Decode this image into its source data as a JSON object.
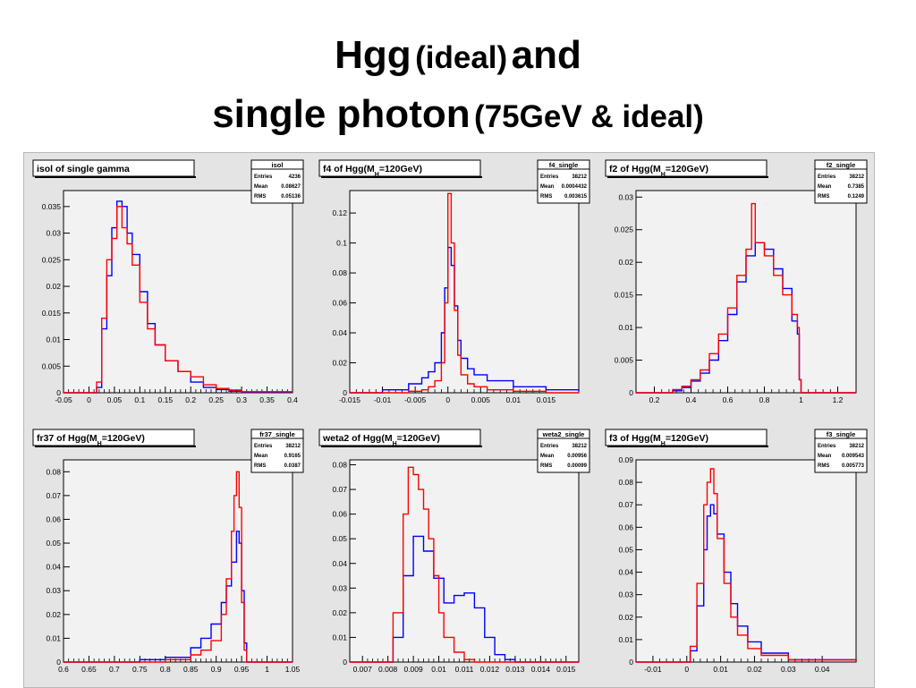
{
  "slide": {
    "title_line1_a": "Hgg",
    "title_line1_b": "(ideal)",
    "title_line1_c": "and",
    "title_line2_a": "single photon",
    "title_line2_b": "(75GeV & ideal)"
  },
  "colors": {
    "hgg": "#0000ff",
    "single": "#ff0000",
    "frame": "#000000",
    "pad": "#f2f2f2"
  },
  "chart_data": [
    {
      "type": "line",
      "title": "isol of single gamma",
      "stats": {
        "name": "isol",
        "rows": [
          [
            "Entries",
            "4236"
          ],
          [
            "Mean",
            "0.08627"
          ],
          [
            "RMS",
            "0.05136"
          ]
        ]
      },
      "xlim": [
        -0.05,
        0.4
      ],
      "ylim": [
        0,
        0.038
      ],
      "xticks": [
        "-0.05",
        "0",
        "0.05",
        "0.1",
        "0.15",
        "0.2",
        "0.25",
        "0.3",
        "0.35",
        "0.4"
      ],
      "xtick_values": [
        -0.05,
        0,
        0.05,
        0.1,
        0.15,
        0.2,
        0.25,
        0.3,
        0.35,
        0.4
      ],
      "yticks": [
        "0.005",
        "0.01",
        "0.015",
        "0.02",
        "0.025",
        "0.03",
        "0.035"
      ],
      "ytick_values": [
        0.005,
        0.01,
        0.015,
        0.02,
        0.025,
        0.03,
        0.035
      ],
      "series": [
        {
          "color": "blue",
          "x": [
            -0.05,
            0.005,
            0.015,
            0.025,
            0.035,
            0.045,
            0.055,
            0.065,
            0.075,
            0.085,
            0.1,
            0.115,
            0.13,
            0.15,
            0.175,
            0.2,
            0.225,
            0.25,
            0.275,
            0.3,
            0.4
          ],
          "y": [
            0,
            0,
            0.001,
            0.012,
            0.022,
            0.031,
            0.036,
            0.035,
            0.03,
            0.026,
            0.019,
            0.013,
            0.009,
            0.006,
            0.004,
            0.002,
            0.001,
            0.0006,
            0.0003,
            0.0001,
            0
          ]
        },
        {
          "color": "red",
          "x": [
            -0.05,
            0.005,
            0.015,
            0.025,
            0.035,
            0.045,
            0.055,
            0.065,
            0.075,
            0.085,
            0.1,
            0.115,
            0.13,
            0.15,
            0.175,
            0.2,
            0.225,
            0.25,
            0.275,
            0.3,
            0.4
          ],
          "y": [
            0,
            0,
            0.002,
            0.014,
            0.025,
            0.029,
            0.035,
            0.031,
            0.028,
            0.024,
            0.017,
            0.012,
            0.009,
            0.006,
            0.004,
            0.003,
            0.0015,
            0.0008,
            0.0005,
            0.0002,
            0
          ]
        }
      ]
    },
    {
      "type": "line",
      "title": "f4 of Hgg(M",
      "title_sub": "H",
      "title_end": "=120GeV)",
      "stats": {
        "name": "f4_single",
        "rows": [
          [
            "Entries",
            "38212"
          ],
          [
            "Mean",
            "0.0004432"
          ],
          [
            "RMS",
            "0.003615"
          ]
        ]
      },
      "xlim": [
        -0.015,
        0.02
      ],
      "ylim": [
        0,
        0.135
      ],
      "xticks": [
        "-0.015",
        "-0.01",
        "-0.005",
        "0",
        "0.005",
        "0.01",
        "0.015"
      ],
      "xtick_values": [
        -0.015,
        -0.01,
        -0.005,
        0,
        0.005,
        0.01,
        0.015
      ],
      "yticks": [
        "0.02",
        "0.04",
        "0.06",
        "0.08",
        "0.1",
        "0.12"
      ],
      "ytick_values": [
        0.02,
        0.04,
        0.06,
        0.08,
        0.1,
        0.12
      ],
      "series": [
        {
          "color": "blue",
          "x": [
            -0.015,
            -0.01,
            -0.006,
            -0.004,
            -0.003,
            -0.002,
            -0.001,
            -0.0005,
            0,
            0.0005,
            0.001,
            0.0015,
            0.002,
            0.003,
            0.004,
            0.006,
            0.01,
            0.015,
            0.02
          ],
          "y": [
            0,
            0.002,
            0.006,
            0.01,
            0.014,
            0.02,
            0.04,
            0.07,
            0.097,
            0.085,
            0.058,
            0.035,
            0.023,
            0.016,
            0.012,
            0.008,
            0.004,
            0.002,
            0.001
          ]
        },
        {
          "color": "red",
          "x": [
            -0.015,
            -0.01,
            -0.006,
            -0.004,
            -0.003,
            -0.002,
            -0.001,
            -0.0005,
            0,
            0.0005,
            0.001,
            0.0015,
            0.002,
            0.003,
            0.004,
            0.006,
            0.01,
            0.015,
            0.02
          ],
          "y": [
            0,
            0,
            0.001,
            0.002,
            0.004,
            0.008,
            0.02,
            0.06,
            0.133,
            0.1,
            0.055,
            0.025,
            0.012,
            0.006,
            0.004,
            0.002,
            0.001,
            0,
            0
          ]
        }
      ]
    },
    {
      "type": "line",
      "title": "f2 of Hgg(M",
      "title_sub": "H",
      "title_end": "=120GeV)",
      "stats": {
        "name": "f2_single",
        "rows": [
          [
            "Entries",
            "38212"
          ],
          [
            "Mean",
            "0.7385"
          ],
          [
            "RMS",
            "0.1249"
          ]
        ]
      },
      "xlim": [
        0.1,
        1.3
      ],
      "ylim": [
        0,
        0.031
      ],
      "xticks": [
        "0.2",
        "0.4",
        "0.6",
        "0.8",
        "1",
        "1.2"
      ],
      "xtick_values": [
        0.2,
        0.4,
        0.6,
        0.8,
        1,
        1.2
      ],
      "yticks": [
        "0.005",
        "0.01",
        "0.015",
        "0.02",
        "0.025",
        "0.03"
      ],
      "ytick_values": [
        0.005,
        0.01,
        0.015,
        0.02,
        0.025,
        0.03
      ],
      "series": [
        {
          "color": "blue",
          "x": [
            0.1,
            0.25,
            0.3,
            0.35,
            0.4,
            0.45,
            0.5,
            0.55,
            0.6,
            0.65,
            0.7,
            0.75,
            0.8,
            0.85,
            0.9,
            0.95,
            0.98,
            0.99,
            1.0,
            1.3
          ],
          "y": [
            0,
            0,
            0.0003,
            0.0008,
            0.0018,
            0.003,
            0.005,
            0.008,
            0.012,
            0.017,
            0.021,
            0.023,
            0.022,
            0.019,
            0.016,
            0.011,
            0.009,
            0.002,
            0,
            0
          ]
        },
        {
          "color": "red",
          "x": [
            0.1,
            0.25,
            0.3,
            0.35,
            0.4,
            0.45,
            0.5,
            0.55,
            0.6,
            0.65,
            0.7,
            0.73,
            0.75,
            0.8,
            0.85,
            0.9,
            0.95,
            0.98,
            0.99,
            1.0,
            1.3
          ],
          "y": [
            0,
            0,
            0.0005,
            0.001,
            0.002,
            0.0035,
            0.006,
            0.009,
            0.013,
            0.018,
            0.022,
            0.029,
            0.023,
            0.021,
            0.018,
            0.015,
            0.012,
            0.01,
            0.002,
            0,
            0
          ]
        }
      ]
    },
    {
      "type": "line",
      "title": "fr37 of Hgg(M",
      "title_sub": "H",
      "title_end": "=120GeV)",
      "stats": {
        "name": "fr37_single",
        "rows": [
          [
            "Entries",
            "38212"
          ],
          [
            "Mean",
            "0.9165"
          ],
          [
            "RMS",
            "0.0387"
          ]
        ]
      },
      "xlim": [
        0.6,
        1.05
      ],
      "ylim": [
        0,
        0.085
      ],
      "xticks": [
        "0.6",
        "0.65",
        "0.7",
        "0.75",
        "0.8",
        "0.85",
        "0.9",
        "0.95",
        "1",
        "1.05"
      ],
      "xtick_values": [
        0.6,
        0.65,
        0.7,
        0.75,
        0.8,
        0.85,
        0.9,
        0.95,
        1,
        1.05
      ],
      "yticks": [
        "0.01",
        "0.02",
        "0.03",
        "0.04",
        "0.05",
        "0.06",
        "0.07",
        "0.08"
      ],
      "ytick_values": [
        0.01,
        0.02,
        0.03,
        0.04,
        0.05,
        0.06,
        0.07,
        0.08
      ],
      "series": [
        {
          "color": "blue",
          "x": [
            0.6,
            0.75,
            0.8,
            0.85,
            0.87,
            0.89,
            0.91,
            0.92,
            0.93,
            0.94,
            0.945,
            0.95,
            0.955,
            0.96,
            0.965,
            1.05
          ],
          "y": [
            0,
            0.001,
            0.002,
            0.006,
            0.01,
            0.016,
            0.025,
            0.032,
            0.042,
            0.055,
            0.05,
            0.03,
            0.008,
            0,
            0,
            0
          ]
        },
        {
          "color": "red",
          "x": [
            0.6,
            0.75,
            0.8,
            0.85,
            0.87,
            0.89,
            0.91,
            0.92,
            0.93,
            0.935,
            0.94,
            0.945,
            0.95,
            0.955,
            0.96,
            1.05
          ],
          "y": [
            0,
            0,
            0.001,
            0.003,
            0.005,
            0.009,
            0.02,
            0.035,
            0.055,
            0.07,
            0.08,
            0.065,
            0.025,
            0.005,
            0,
            0
          ]
        }
      ]
    },
    {
      "type": "line",
      "title": "weta2 of Hgg(M",
      "title_sub": "H",
      "title_end": "=120GeV)",
      "stats": {
        "name": "weta2_single",
        "rows": [
          [
            "Entries",
            "38212"
          ],
          [
            "Mean",
            "0.00956"
          ],
          [
            "RMS",
            "0.00099"
          ]
        ]
      },
      "xlim": [
        0.0065,
        0.0155
      ],
      "ylim": [
        0,
        0.082
      ],
      "xticks": [
        "0.007",
        "0.008",
        "0.009",
        "0.01",
        "0.011",
        "0.012",
        "0.013",
        "0.014",
        "0.015"
      ],
      "xtick_values": [
        0.007,
        0.008,
        0.009,
        0.01,
        0.011,
        0.012,
        0.013,
        0.014,
        0.015
      ],
      "yticks": [
        "0.01",
        "0.02",
        "0.03",
        "0.04",
        "0.05",
        "0.06",
        "0.07",
        "0.08"
      ],
      "ytick_values": [
        0.01,
        0.02,
        0.03,
        0.04,
        0.05,
        0.06,
        0.07,
        0.08
      ],
      "series": [
        {
          "color": "blue",
          "x": [
            0.0065,
            0.0078,
            0.0082,
            0.0086,
            0.009,
            0.0094,
            0.0098,
            0.0102,
            0.0106,
            0.011,
            0.0114,
            0.0118,
            0.0122,
            0.0126,
            0.013,
            0.0155
          ],
          "y": [
            0,
            0,
            0.01,
            0.035,
            0.051,
            0.045,
            0.034,
            0.024,
            0.027,
            0.028,
            0.022,
            0.01,
            0.003,
            0.001,
            0,
            0
          ]
        },
        {
          "color": "red",
          "x": [
            0.0065,
            0.0078,
            0.0082,
            0.0086,
            0.0088,
            0.009,
            0.0092,
            0.0094,
            0.0096,
            0.0098,
            0.01,
            0.0102,
            0.0106,
            0.011,
            0.0114,
            0.0155
          ],
          "y": [
            0,
            0,
            0.02,
            0.06,
            0.079,
            0.076,
            0.07,
            0.062,
            0.05,
            0.035,
            0.02,
            0.01,
            0.004,
            0.001,
            0,
            0
          ]
        }
      ]
    },
    {
      "type": "line",
      "title": "f3 of Hgg(M",
      "title_sub": "H",
      "title_end": "=120GeV)",
      "stats": {
        "name": "f3_single",
        "rows": [
          [
            "Entries",
            "38212"
          ],
          [
            "Mean",
            "0.009543"
          ],
          [
            "RMS",
            "0.005773"
          ]
        ]
      },
      "xlim": [
        -0.015,
        0.05
      ],
      "ylim": [
        0,
        0.09
      ],
      "xticks": [
        "-0.01",
        "0",
        "0.01",
        "0.02",
        "0.03",
        "0.04"
      ],
      "xtick_values": [
        -0.01,
        0,
        0.01,
        0.02,
        0.03,
        0.04
      ],
      "yticks": [
        "0.01",
        "0.02",
        "0.03",
        "0.04",
        "0.05",
        "0.06",
        "0.07",
        "0.08",
        "0.09"
      ],
      "ytick_values": [
        0.01,
        0.02,
        0.03,
        0.04,
        0.05,
        0.06,
        0.07,
        0.08,
        0.09
      ],
      "series": [
        {
          "color": "blue",
          "x": [
            -0.015,
            -0.001,
            0.001,
            0.003,
            0.005,
            0.006,
            0.007,
            0.008,
            0.009,
            0.011,
            0.013,
            0.015,
            0.018,
            0.022,
            0.03,
            0.05
          ],
          "y": [
            0,
            0,
            0.005,
            0.025,
            0.05,
            0.065,
            0.07,
            0.066,
            0.057,
            0.04,
            0.026,
            0.016,
            0.009,
            0.004,
            0.001,
            0
          ]
        },
        {
          "color": "red",
          "x": [
            -0.015,
            -0.001,
            0.001,
            0.003,
            0.005,
            0.006,
            0.007,
            0.008,
            0.009,
            0.011,
            0.013,
            0.015,
            0.018,
            0.022,
            0.03,
            0.05
          ],
          "y": [
            0,
            0,
            0.007,
            0.035,
            0.07,
            0.08,
            0.086,
            0.075,
            0.055,
            0.035,
            0.02,
            0.012,
            0.006,
            0.003,
            0.001,
            0
          ]
        }
      ]
    }
  ]
}
